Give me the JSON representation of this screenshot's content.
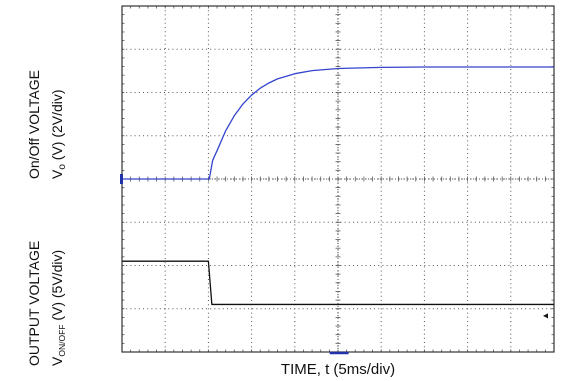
{
  "chart_data": {
    "type": "line",
    "x_axis": {
      "label": "TIME, t (5ms/div)",
      "divisions": 10,
      "unit_per_div_ms": 5,
      "range_ms": [
        0,
        50
      ]
    },
    "panels": [
      {
        "name": "top",
        "label_line1": "On/Off VOLTAGE",
        "label_line2_pre": "V",
        "label_line2_sub": "o",
        "label_line2_post": " (V) (2V/div)",
        "divisions": 4,
        "volts_per_div": 2,
        "ylim": [
          0,
          8
        ]
      },
      {
        "name": "bottom",
        "label_line1": "OUTPUT VOLTAGE",
        "label_line2_pre": "V",
        "label_line2_sub": "ON/OFF",
        "label_line2_post": " (V) (5V/div)",
        "divisions": 4,
        "volts_per_div": 5,
        "ylim": [
          0,
          20
        ]
      }
    ],
    "series": [
      {
        "panel": "top",
        "color": "#3344cc",
        "stroke_width": 1.3,
        "x": [
          0,
          10.1,
          10.5,
          11,
          12,
          13,
          14,
          15,
          16,
          17,
          18,
          20,
          22,
          25,
          30,
          35,
          40,
          45,
          50
        ],
        "y": [
          0,
          0,
          0.87,
          1.31,
          2.23,
          2.93,
          3.47,
          3.88,
          4.2,
          4.44,
          4.63,
          4.87,
          5.01,
          5.11,
          5.16,
          5.18,
          5.18,
          5.18,
          5.18
        ]
      },
      {
        "panel": "bottom",
        "color": "#111111",
        "stroke_width": 1.3,
        "x": [
          0,
          10,
          10.4,
          50
        ],
        "y": [
          8,
          8,
          3,
          3
        ]
      }
    ],
    "grid": true,
    "colors": {
      "grid": "#555555",
      "frame": "#333333",
      "trace_top": "#3344cc",
      "trace_bottom": "#111111",
      "marker": "#2233aa"
    }
  }
}
